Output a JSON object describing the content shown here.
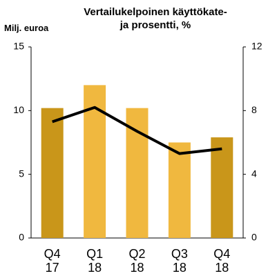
{
  "chart_data": {
    "type": "bar",
    "title": "Vertailukelpoinen käyttökate-\nja prosentti, %",
    "y_label": "Milj. euroa",
    "categories": [
      "Q4\n17",
      "Q1\n18",
      "Q2\n18",
      "Q3\n18",
      "Q4\n18"
    ],
    "series": [
      {
        "type": "bar",
        "colors": [
          "#c9961a",
          "#f0b83f",
          "#f0b83f",
          "#f0b83f",
          "#c9961a"
        ],
        "values": [
          10.2,
          12.0,
          10.2,
          7.5,
          7.9
        ]
      },
      {
        "type": "line",
        "axis": "y2",
        "color": "#000000",
        "values": [
          7.3,
          8.2,
          6.7,
          5.3,
          5.6
        ]
      }
    ],
    "ylim": [
      0,
      15
    ],
    "yticks": [
      0,
      5,
      10,
      15
    ],
    "y2lim": [
      0,
      12
    ],
    "y2ticks": [
      0,
      4,
      8,
      12
    ]
  }
}
